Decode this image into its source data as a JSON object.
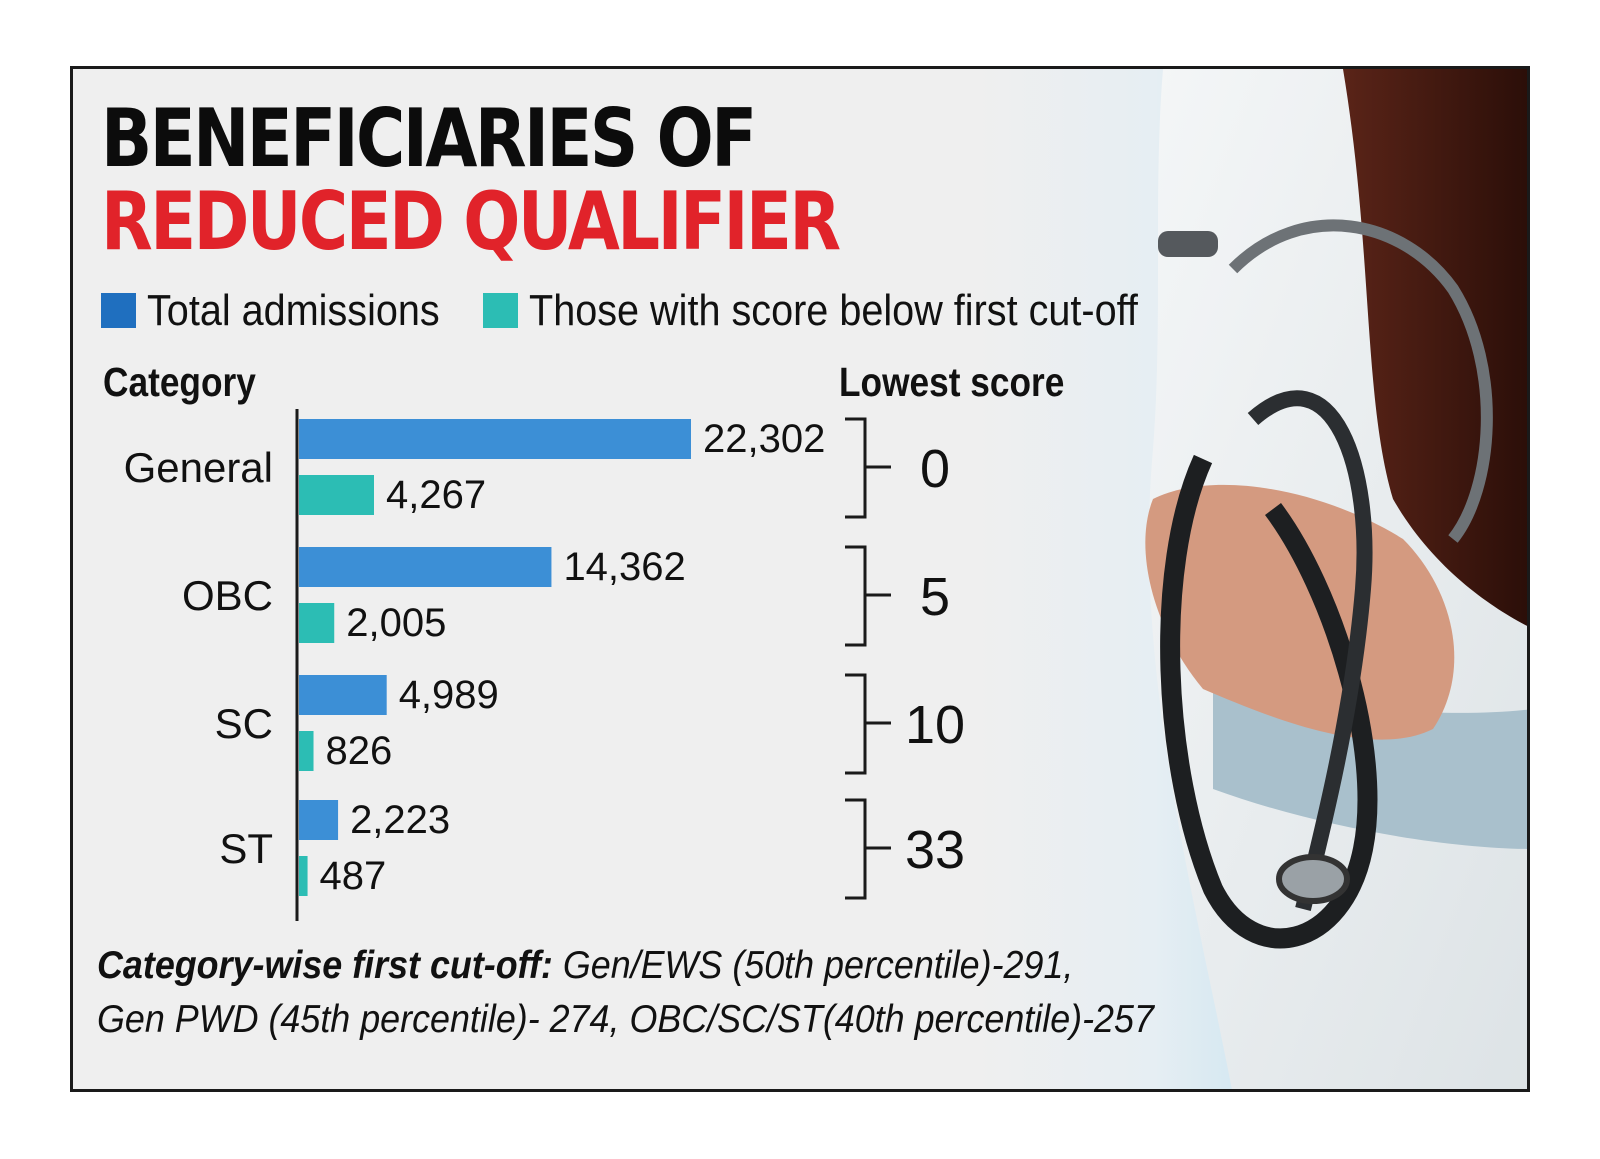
{
  "title": {
    "line1": "BENEFICIARIES OF",
    "line2": "REDUCED QUALIFIER"
  },
  "colors": {
    "title_black": "#0c0c0c",
    "title_red": "#e1232a",
    "total": "#3c8fd6",
    "below": "#2cbdb4",
    "legend_total_swatch": "#1f6fbf",
    "legend_below_swatch": "#2cbdb4"
  },
  "legend": [
    {
      "label": "Total admissions",
      "color_key": "legend_total_swatch"
    },
    {
      "label": "Those with score below first cut-off",
      "color_key": "legend_below_swatch"
    }
  ],
  "headers": {
    "category": "Category",
    "lowest_score": "Lowest score"
  },
  "chart_data": {
    "type": "bar",
    "orientation": "horizontal",
    "categories": [
      "General",
      "OBC",
      "SC",
      "ST"
    ],
    "series": [
      {
        "name": "Total admissions",
        "values": [
          22302,
          14362,
          4989,
          2223
        ],
        "labels": [
          "22,302",
          "14,362",
          "4,989",
          "2,223"
        ]
      },
      {
        "name": "Those with score below first cut-off",
        "values": [
          4267,
          2005,
          826,
          487
        ],
        "labels": [
          "4,267",
          "2,005",
          "826",
          "487"
        ]
      }
    ],
    "lowest_score": [
      "0",
      "5",
      "10",
      "33"
    ]
  },
  "footnote": {
    "bold": "Category-wise first cut-off:",
    "text1": " Gen/EWS (50th percentile)-291,",
    "text2": "Gen PWD (45th percentile)- 274, OBC/SC/ST(40th percentile)-257"
  }
}
